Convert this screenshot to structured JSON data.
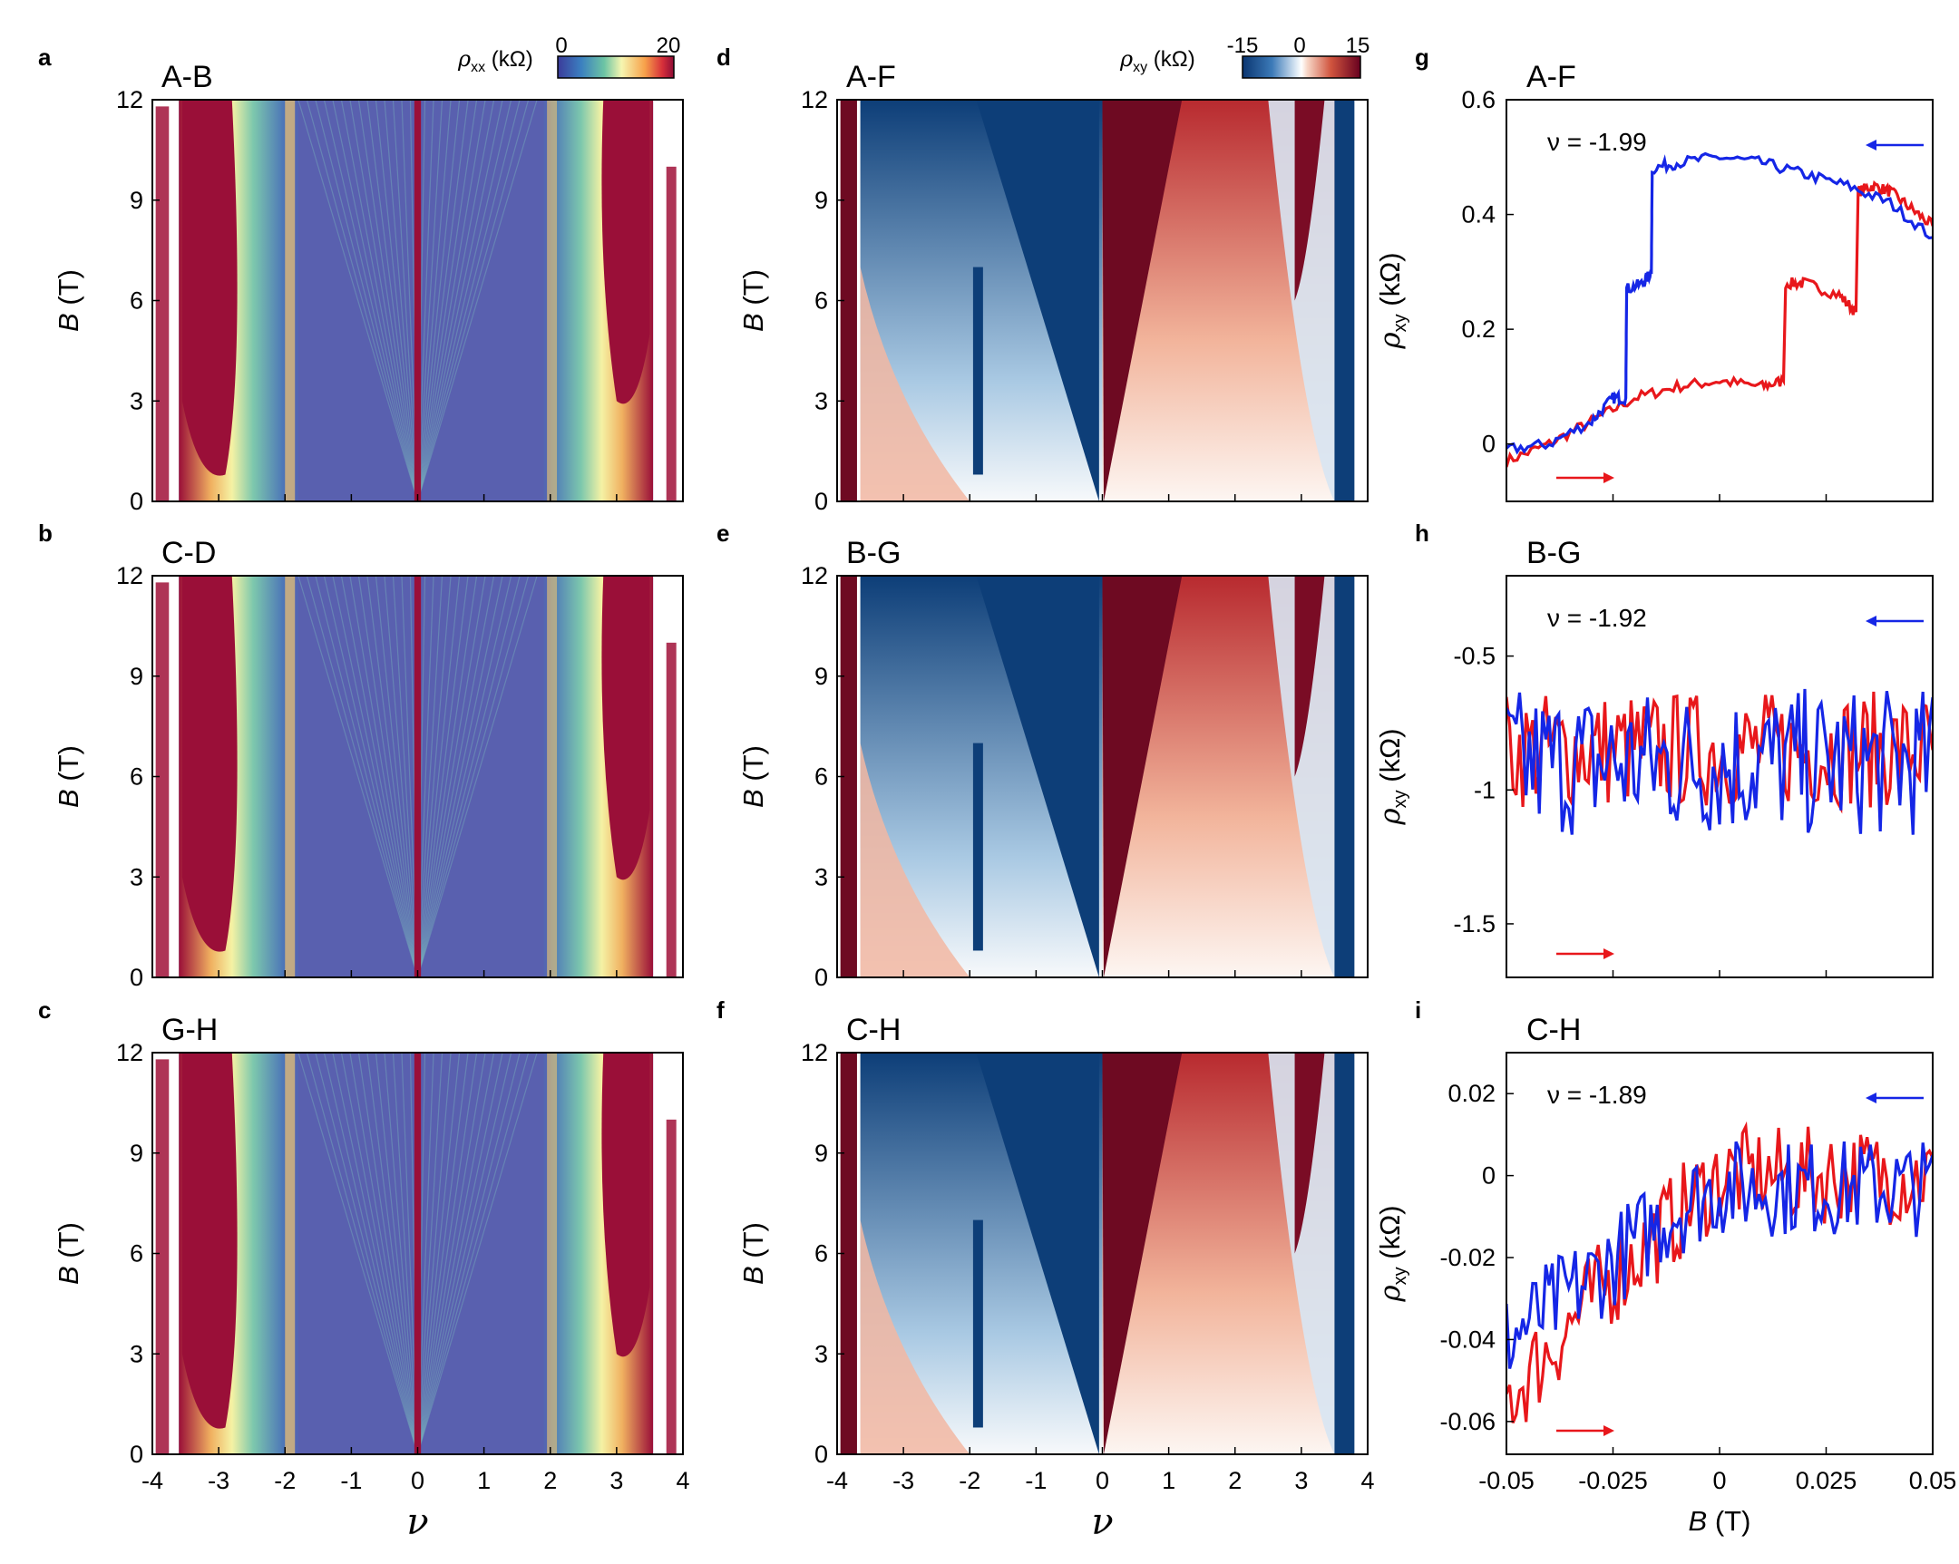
{
  "figure": {
    "colorbars": {
      "rxx": {
        "label_sym": "ρ",
        "label_sub": "xx",
        "label_unit": " (kΩ)",
        "min": "0",
        "max": "20"
      },
      "rxy": {
        "label_sym": "ρ",
        "label_sub": "xy",
        "label_unit": " (kΩ)",
        "min": "-15",
        "zero": "0",
        "max": "15"
      }
    },
    "colors": {
      "red_sweep": "#e8171b",
      "blue_sweep": "#1526e6",
      "map_high_rxx": "#9a0f38",
      "map_low_rxx": "#5060b0",
      "map_neg_rxy": "#0d3e78",
      "map_pos_rxy": "#6e0a22"
    },
    "axis_labels": {
      "B_sym": "B",
      "B_unit": " (T)",
      "nu": "ν",
      "rho_sym": "ρ",
      "rho_sub": "xy",
      "rho_unit": " (kΩ)"
    }
  },
  "chart_data": [
    {
      "panel": "a",
      "title": "A-B",
      "type": "heatmap",
      "quantity": "rho_xx",
      "x_ticks": [
        "-4",
        "-3",
        "-2",
        "-1",
        "0",
        "1",
        "2",
        "3",
        "4"
      ],
      "y_ticks": [
        "0",
        "3",
        "6",
        "9",
        "12"
      ],
      "xlim": [
        -4,
        4
      ],
      "ylim": [
        0,
        12
      ],
      "colorscale_kOhm": [
        0,
        20
      ]
    },
    {
      "panel": "b",
      "title": "C-D",
      "type": "heatmap",
      "quantity": "rho_xx",
      "x_ticks": [
        "-4",
        "-3",
        "-2",
        "-1",
        "0",
        "1",
        "2",
        "3",
        "4"
      ],
      "y_ticks": [
        "0",
        "3",
        "6",
        "9",
        "12"
      ],
      "xlim": [
        -4,
        4
      ],
      "ylim": [
        0,
        12
      ],
      "colorscale_kOhm": [
        0,
        20
      ]
    },
    {
      "panel": "c",
      "title": "G-H",
      "type": "heatmap",
      "quantity": "rho_xx",
      "x_ticks": [
        "-4",
        "-3",
        "-2",
        "-1",
        "0",
        "1",
        "2",
        "3",
        "4"
      ],
      "y_ticks": [
        "0",
        "3",
        "6",
        "9",
        "12"
      ],
      "xlim": [
        -4,
        4
      ],
      "ylim": [
        0,
        12
      ],
      "colorscale_kOhm": [
        0,
        20
      ]
    },
    {
      "panel": "d",
      "title": "A-F",
      "type": "heatmap",
      "quantity": "rho_xy",
      "x_ticks": [
        "-4",
        "-3",
        "-2",
        "-1",
        "0",
        "1",
        "2",
        "3",
        "4"
      ],
      "y_ticks": [
        "0",
        "3",
        "6",
        "9",
        "12"
      ],
      "xlim": [
        -4,
        4
      ],
      "ylim": [
        0,
        12
      ],
      "colorscale_kOhm": [
        -15,
        15
      ]
    },
    {
      "panel": "e",
      "title": "B-G",
      "type": "heatmap",
      "quantity": "rho_xy",
      "x_ticks": [
        "-4",
        "-3",
        "-2",
        "-1",
        "0",
        "1",
        "2",
        "3",
        "4"
      ],
      "y_ticks": [
        "0",
        "3",
        "6",
        "9",
        "12"
      ],
      "xlim": [
        -4,
        4
      ],
      "ylim": [
        0,
        12
      ],
      "colorscale_kOhm": [
        -15,
        15
      ]
    },
    {
      "panel": "f",
      "title": "C-H",
      "type": "heatmap",
      "quantity": "rho_xy",
      "x_ticks": [
        "-4",
        "-3",
        "-2",
        "-1",
        "0",
        "1",
        "2",
        "3",
        "4"
      ],
      "y_ticks": [
        "0",
        "3",
        "6",
        "9",
        "12"
      ],
      "xlim": [
        -4,
        4
      ],
      "ylim": [
        0,
        12
      ],
      "colorscale_kOhm": [
        -15,
        15
      ]
    },
    {
      "panel": "g",
      "title": "A-F",
      "type": "line",
      "annotation": "ν = -1.99",
      "xlim": [
        -0.05,
        0.05
      ],
      "ylim": [
        -0.1,
        0.6
      ],
      "y_ticks": [
        {
          "v": 0,
          "t": "0"
        },
        {
          "v": 0.2,
          "t": "0.2"
        },
        {
          "v": 0.4,
          "t": "0.4"
        },
        {
          "v": 0.6,
          "t": "0.6"
        }
      ],
      "x_ticks": [],
      "series": [
        {
          "color": "red",
          "points": [
            [
              -0.05,
              -0.03
            ],
            [
              -0.04,
              0.0
            ],
            [
              -0.03,
              0.04
            ],
            [
              -0.02,
              0.08
            ],
            [
              -0.01,
              0.1
            ],
            [
              0.0,
              0.11
            ],
            [
              0.01,
              0.1
            ],
            [
              0.015,
              0.11
            ],
            [
              0.0155,
              0.28
            ],
            [
              0.02,
              0.28
            ],
            [
              0.028,
              0.26
            ],
            [
              0.032,
              0.23
            ],
            [
              0.0325,
              0.44
            ],
            [
              0.036,
              0.45
            ],
            [
              0.04,
              0.44
            ],
            [
              0.045,
              0.41
            ],
            [
              0.05,
              0.38
            ]
          ]
        },
        {
          "color": "blue",
          "points": [
            [
              -0.05,
              -0.01
            ],
            [
              -0.04,
              0.0
            ],
            [
              -0.03,
              0.04
            ],
            [
              -0.025,
              0.08
            ],
            [
              -0.022,
              0.08
            ],
            [
              -0.0218,
              0.27
            ],
            [
              -0.018,
              0.28
            ],
            [
              -0.016,
              0.3
            ],
            [
              -0.0158,
              0.48
            ],
            [
              -0.01,
              0.49
            ],
            [
              0.0,
              0.5
            ],
            [
              0.01,
              0.49
            ],
            [
              0.02,
              0.47
            ],
            [
              0.03,
              0.45
            ],
            [
              0.04,
              0.42
            ],
            [
              0.05,
              0.36
            ]
          ]
        }
      ]
    },
    {
      "panel": "h",
      "title": "B-G",
      "type": "line",
      "annotation": "ν = -1.92",
      "xlim": [
        -0.05,
        0.05
      ],
      "ylim": [
        -1.7,
        -0.2
      ],
      "y_ticks": [
        {
          "v": -1.5,
          "t": "-1.5"
        },
        {
          "v": -1,
          "t": "-1"
        },
        {
          "v": -0.5,
          "t": "-0.5"
        }
      ],
      "x_ticks": [],
      "series": [
        {
          "color": "red",
          "mean": -0.85,
          "noise": 0.22
        },
        {
          "color": "blue",
          "mean": -0.9,
          "noise": 0.28
        }
      ]
    },
    {
      "panel": "i",
      "title": "C-H",
      "type": "line",
      "annotation": "ν = -1.89",
      "xlim": [
        -0.05,
        0.05
      ],
      "ylim": [
        -0.068,
        0.03
      ],
      "xlabel_sym": "B",
      "xlabel_unit": " (T)",
      "y_ticks": [
        {
          "v": -0.06,
          "t": "-0.06"
        },
        {
          "v": -0.04,
          "t": "-0.04"
        },
        {
          "v": -0.02,
          "t": "-0.02"
        },
        {
          "v": 0,
          "t": "0"
        },
        {
          "v": 0.02,
          "t": "0.02"
        }
      ],
      "x_ticks": [
        {
          "v": -0.05,
          "t": "-0.05"
        },
        {
          "v": -0.025,
          "t": "-0.025"
        },
        {
          "v": 0,
          "t": "0"
        },
        {
          "v": 0.025,
          "t": "0.025"
        },
        {
          "v": 0.05,
          "t": "0.05"
        }
      ],
      "series": [
        {
          "color": "red",
          "trend": [
            [
              -0.05,
              -0.055
            ],
            [
              -0.03,
              -0.03
            ],
            [
              -0.01,
              -0.01
            ],
            [
              0.0,
              0.0
            ],
            [
              0.05,
              0.0
            ]
          ],
          "noise": 0.012
        },
        {
          "color": "blue",
          "trend": [
            [
              -0.05,
              -0.04
            ],
            [
              -0.03,
              -0.025
            ],
            [
              -0.01,
              -0.008
            ],
            [
              0.0,
              -0.003
            ],
            [
              0.05,
              -0.003
            ]
          ],
          "noise": 0.012
        }
      ]
    }
  ]
}
